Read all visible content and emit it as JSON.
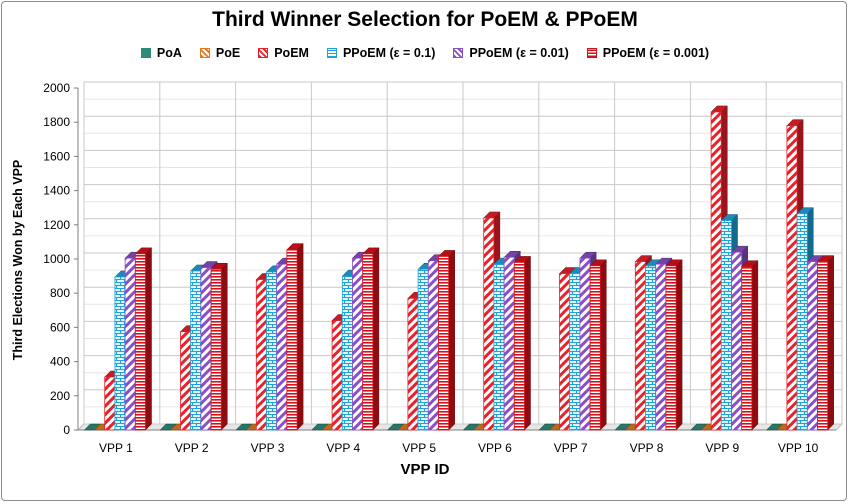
{
  "chart_data": {
    "type": "bar",
    "title": "Third Winner Selection for PoEM & PPoEM",
    "xlabel": "VPP ID",
    "ylabel": "Third Elections Won by Each VPP",
    "ylim": [
      0,
      2000
    ],
    "yticks": [
      0,
      200,
      400,
      600,
      800,
      1000,
      1200,
      1400,
      1600,
      1800,
      2000
    ],
    "grid": true,
    "legend_position": "top",
    "categories": [
      "VPP 1",
      "VPP 2",
      "VPP 3",
      "VPP 4",
      "VPP 5",
      "VPP 6",
      "VPP 7",
      "VPP 8",
      "VPP 9",
      "VPP 10"
    ],
    "series": [
      {
        "name": "PoA",
        "color": "#2e8b7a",
        "pattern": "dots",
        "values": [
          0,
          0,
          0,
          0,
          0,
          0,
          0,
          0,
          0,
          0
        ]
      },
      {
        "name": "PoE",
        "color": "#e07b20",
        "pattern": "diagonal",
        "values": [
          0,
          0,
          0,
          0,
          0,
          0,
          0,
          0,
          0,
          0
        ]
      },
      {
        "name": "PoEM",
        "color": "#e8212a",
        "pattern": "diagonal",
        "values": [
          310,
          575,
          880,
          640,
          770,
          1240,
          915,
          985,
          1860,
          1780
        ]
      },
      {
        "name": "PPoEM (ε = 0.1)",
        "color": "#1fa3d8",
        "pattern": "bricks",
        "values": [
          895,
          930,
          925,
          900,
          940,
          970,
          915,
          960,
          1225,
          1265
        ]
      },
      {
        "name": "PPoEM (ε = 0.01)",
        "color": "#8a4fc4",
        "pattern": "diagonal",
        "values": [
          1005,
          950,
          970,
          1005,
          990,
          1010,
          1005,
          970,
          1040,
          985
        ]
      },
      {
        "name": "PPoEM (ε = 0.001)",
        "color": "#d8121b",
        "pattern": "horizontal",
        "values": [
          1030,
          940,
          1055,
          1030,
          1015,
          980,
          960,
          960,
          955,
          985
        ]
      }
    ]
  }
}
